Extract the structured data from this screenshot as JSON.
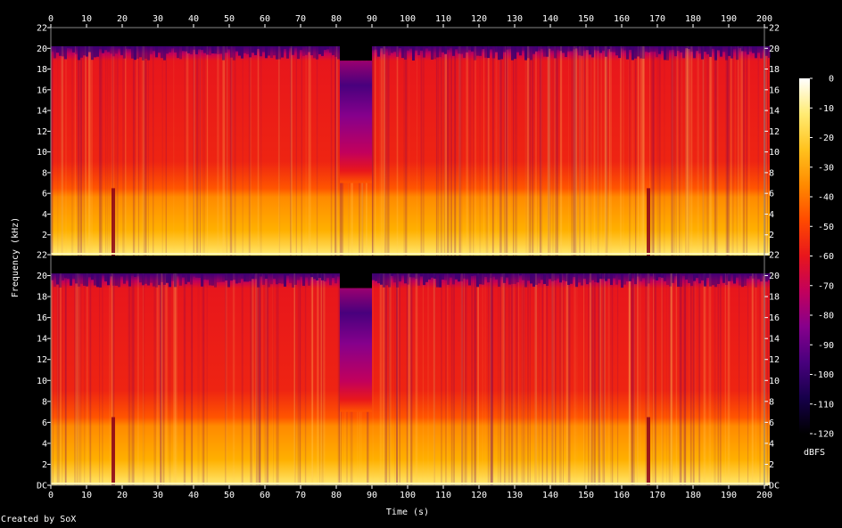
{
  "chart_data": {
    "type": "heatmap",
    "title": "",
    "xlabel": "Time (s)",
    "ylabel": "Frequency (kHz)",
    "xlim": [
      0,
      200
    ],
    "ylim": [
      0,
      22
    ],
    "x_ticks": [
      0,
      10,
      20,
      30,
      40,
      50,
      60,
      70,
      80,
      90,
      100,
      110,
      120,
      130,
      140,
      150,
      160,
      170,
      180,
      190,
      200
    ],
    "y_ticks_top_channel": [
      "2",
      "4",
      "6",
      "8",
      "10",
      "12",
      "14",
      "16",
      "18",
      "20",
      "22"
    ],
    "y_ticks_bottom_channel": [
      "DC",
      "2",
      "4",
      "6",
      "8",
      "10",
      "12",
      "14",
      "16",
      "18",
      "20",
      "22"
    ],
    "channels": 2,
    "colorbar": {
      "label": "dBFS",
      "ticks": [
        "0",
        "-10",
        "-20",
        "-30",
        "-40",
        "-50",
        "-60",
        "-70",
        "-80",
        "-90",
        "-100",
        "-110",
        "-120"
      ],
      "range": [
        -120,
        0
      ]
    },
    "colormap": [
      "#000000",
      "#16004a",
      "#48007d",
      "#86008c",
      "#c2005c",
      "#e8161c",
      "#ff4a00",
      "#ff8a00",
      "#ffc21e",
      "#ffeb73",
      "#ffffff"
    ],
    "features": [
      {
        "start_s": 81,
        "end_s": 90,
        "description_level": "quiet gap, energy up to ~19 kHz, purple band 12-16 kHz"
      },
      {
        "start_s": 17,
        "end_s": 18,
        "description_level": "dark line"
      },
      {
        "start_s": 167,
        "end_s": 168,
        "description_level": "dark line"
      }
    ]
  },
  "footer": "Created by SoX"
}
